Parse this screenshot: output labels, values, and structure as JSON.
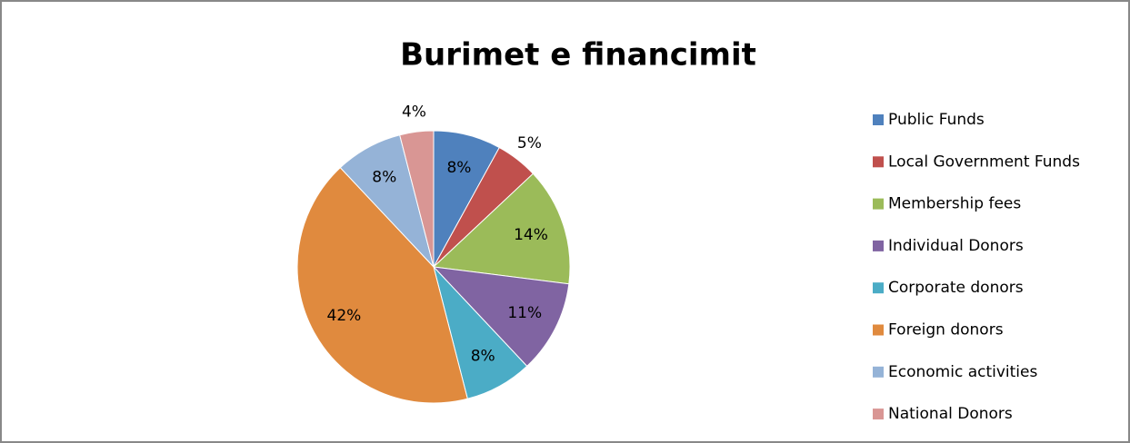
{
  "chart_data": {
    "type": "pie",
    "title": "Burimet e financimit",
    "categories": [
      "Public Funds",
      "Local Government Funds",
      "Membership fees",
      "Individual Donors",
      "Corporate donors",
      "Foreign donors",
      "Economic activities",
      "National Donors"
    ],
    "values": [
      8,
      5,
      14,
      11,
      8,
      42,
      8,
      4
    ],
    "value_labels": [
      "8%",
      "5%",
      "14%",
      "11%",
      "8%",
      "42%",
      "8%",
      "4%"
    ],
    "colors": [
      "#4f81bd",
      "#c0504d",
      "#9bbb59",
      "#8064a2",
      "#4bacc6",
      "#e08a3e",
      "#95b3d7",
      "#d99694"
    ],
    "legend": "right"
  }
}
